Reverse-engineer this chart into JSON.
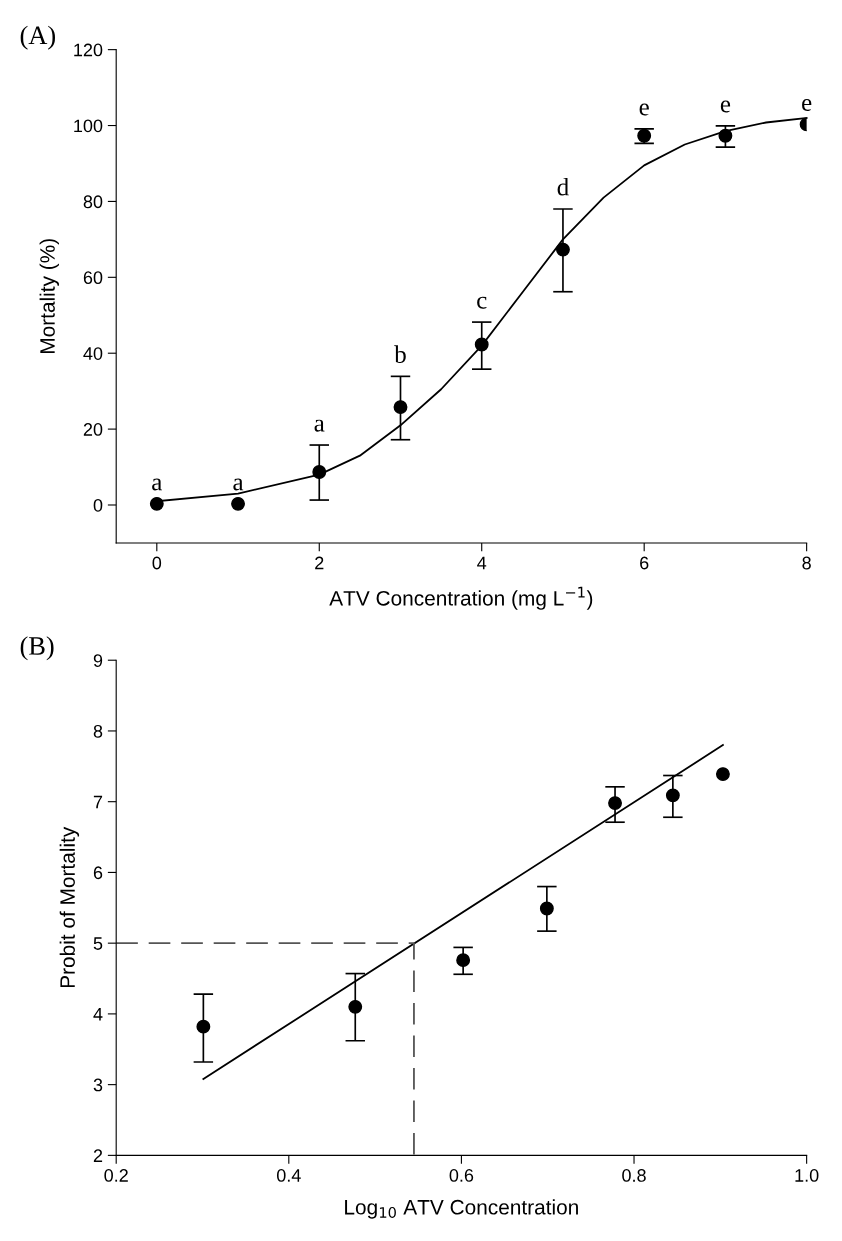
{
  "chart_data": [
    {
      "type": "scatter",
      "title": "(A)",
      "xlabel": "ATV Concentration (mg L$^{−1}$)",
      "ylabel": "Mortality (%)",
      "xlim": [
        -0.5,
        8
      ],
      "ylim": [
        -10,
        120
      ],
      "xticks": [
        0,
        2,
        4,
        6,
        8
      ],
      "yticks": [
        0,
        20,
        40,
        60,
        80,
        100,
        120
      ],
      "grid": false,
      "legend": false,
      "series": [
        {
          "color": "#000000",
          "marker": "circle",
          "x": [
            0,
            1,
            2,
            3,
            4,
            5,
            6,
            7,
            8
          ],
          "values": [
            0.3,
            0.3,
            8.7,
            25.8,
            42.3,
            67.3,
            97.3,
            97.3,
            100.3
          ],
          "errors": [
            null,
            null,
            [
              1.3,
              15.8
            ],
            [
              17.2,
              33.9
            ],
            [
              35.8,
              48.2
            ],
            [
              56.2,
              78
            ],
            [
              95.3,
              99.1
            ],
            [
              94.3,
              99.9
            ],
            null
          ]
        },
        {
          "type": "line",
          "color": "#000000",
          "marker": "none",
          "line_style": "solid",
          "x": [
            0,
            1,
            2,
            2.5,
            3,
            3.5,
            4,
            4.5,
            5,
            5.5,
            6,
            6.5,
            7,
            7.5,
            8
          ],
          "values": [
            1,
            3,
            8,
            13,
            21,
            30.5,
            42,
            56,
            70,
            81,
            89.5,
            95,
            98.5,
            100.8,
            102
          ]
        }
      ],
      "annotations": [
        {
          "text": "a",
          "x": 0,
          "y": 0.3
        },
        {
          "text": "a",
          "x": 1,
          "y": 0.3
        },
        {
          "text": "a",
          "x": 2,
          "y": 15.8
        },
        {
          "text": "b",
          "x": 3,
          "y": 33.9
        },
        {
          "text": "c",
          "x": 4,
          "y": 48.2
        },
        {
          "text": "d",
          "x": 5,
          "y": 78
        },
        {
          "text": "e",
          "x": 6,
          "y": 99.1
        },
        {
          "text": "e",
          "x": 7,
          "y": 99.9
        },
        {
          "text": "e",
          "x": 8,
          "y": 100.3
        }
      ]
    },
    {
      "type": "scatter",
      "title": "(B)",
      "xlabel": "Log$_{10}$ ATV Concentration",
      "ylabel": "Probit of Mortality",
      "xlim": [
        0.2,
        1.0
      ],
      "ylim": [
        2,
        9
      ],
      "xticks": [
        0.2,
        0.4,
        0.6,
        0.8,
        {
          "value": 1.0,
          "label": "1.0"
        }
      ],
      "yticks": [
        2,
        3,
        4,
        5,
        6,
        7,
        8,
        9
      ],
      "grid": false,
      "legend": false,
      "series": [
        {
          "color": "#000000",
          "marker": "circle",
          "x": [
            0.301,
            0.477,
            0.602,
            0.699,
            0.778,
            0.845,
            0.903
          ],
          "values": [
            3.82,
            4.1,
            4.76,
            5.49,
            6.98,
            7.09,
            7.39
          ],
          "errors": [
            [
              3.32,
              4.28
            ],
            [
              3.62,
              4.57
            ],
            [
              4.56,
              4.94
            ],
            [
              5.17,
              5.8
            ],
            [
              6.71,
              7.21
            ],
            [
              6.78,
              7.37
            ],
            null
          ]
        },
        {
          "type": "line",
          "color": "#000000",
          "marker": "none",
          "line_style": "solid",
          "x": [
            0.301,
            0.903
          ],
          "values": [
            3.08,
            7.8
          ]
        },
        {
          "type": "line",
          "color": "#555555",
          "marker": "none",
          "line_style": "dashed",
          "x": [
            0.2,
            0.545,
            0.545
          ],
          "values": [
            5,
            5,
            2
          ]
        }
      ]
    }
  ]
}
